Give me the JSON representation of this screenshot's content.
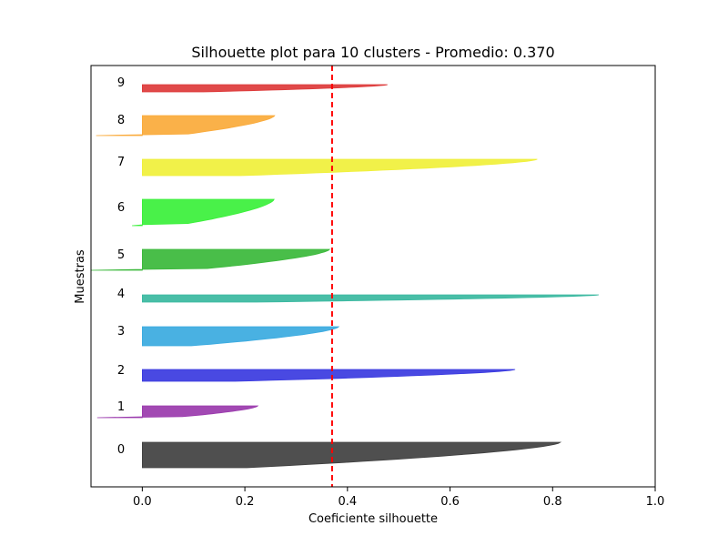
{
  "chart_data": {
    "type": "area",
    "title": "Silhouette plot para 10 clusters - Promedio: 0.370",
    "xlabel": "Coeficiente silhouette",
    "ylabel": "Muestras",
    "xlim": [
      -0.1,
      1.0
    ],
    "xticks": [
      "0.0",
      "0.2",
      "0.4",
      "0.6",
      "0.8",
      "1.0"
    ],
    "xtick_values": [
      0.0,
      0.2,
      0.4,
      0.6,
      0.8,
      1.0
    ],
    "average_line": {
      "value": 0.37,
      "color": "#ff0000",
      "style": "dashed"
    },
    "grid": false,
    "legend": "none",
    "clusters": [
      {
        "label": "0",
        "color": "#404040",
        "min": 0.0,
        "max": 0.815
      },
      {
        "label": "1",
        "color": "#9a3aad",
        "min": -0.088,
        "max": 0.225
      },
      {
        "label": "2",
        "color": "#3a3ae0",
        "min": 0.0,
        "max": 0.727
      },
      {
        "label": "3",
        "color": "#3aaae0",
        "min": 0.0,
        "max": 0.383
      },
      {
        "label": "4",
        "color": "#3ab8a0",
        "min": 0.0,
        "max": 0.89
      },
      {
        "label": "5",
        "color": "#3ab83a",
        "min": -0.1,
        "max": 0.365
      },
      {
        "label": "6",
        "color": "#3af03a",
        "min": -0.02,
        "max": 0.257
      },
      {
        "label": "7",
        "color": "#f0f03a",
        "min": 0.0,
        "max": 0.77
      },
      {
        "label": "8",
        "color": "#faaa3a",
        "min": -0.09,
        "max": 0.258
      },
      {
        "label": "9",
        "color": "#dd3a3a",
        "min": 0.0,
        "max": 0.478
      }
    ]
  }
}
